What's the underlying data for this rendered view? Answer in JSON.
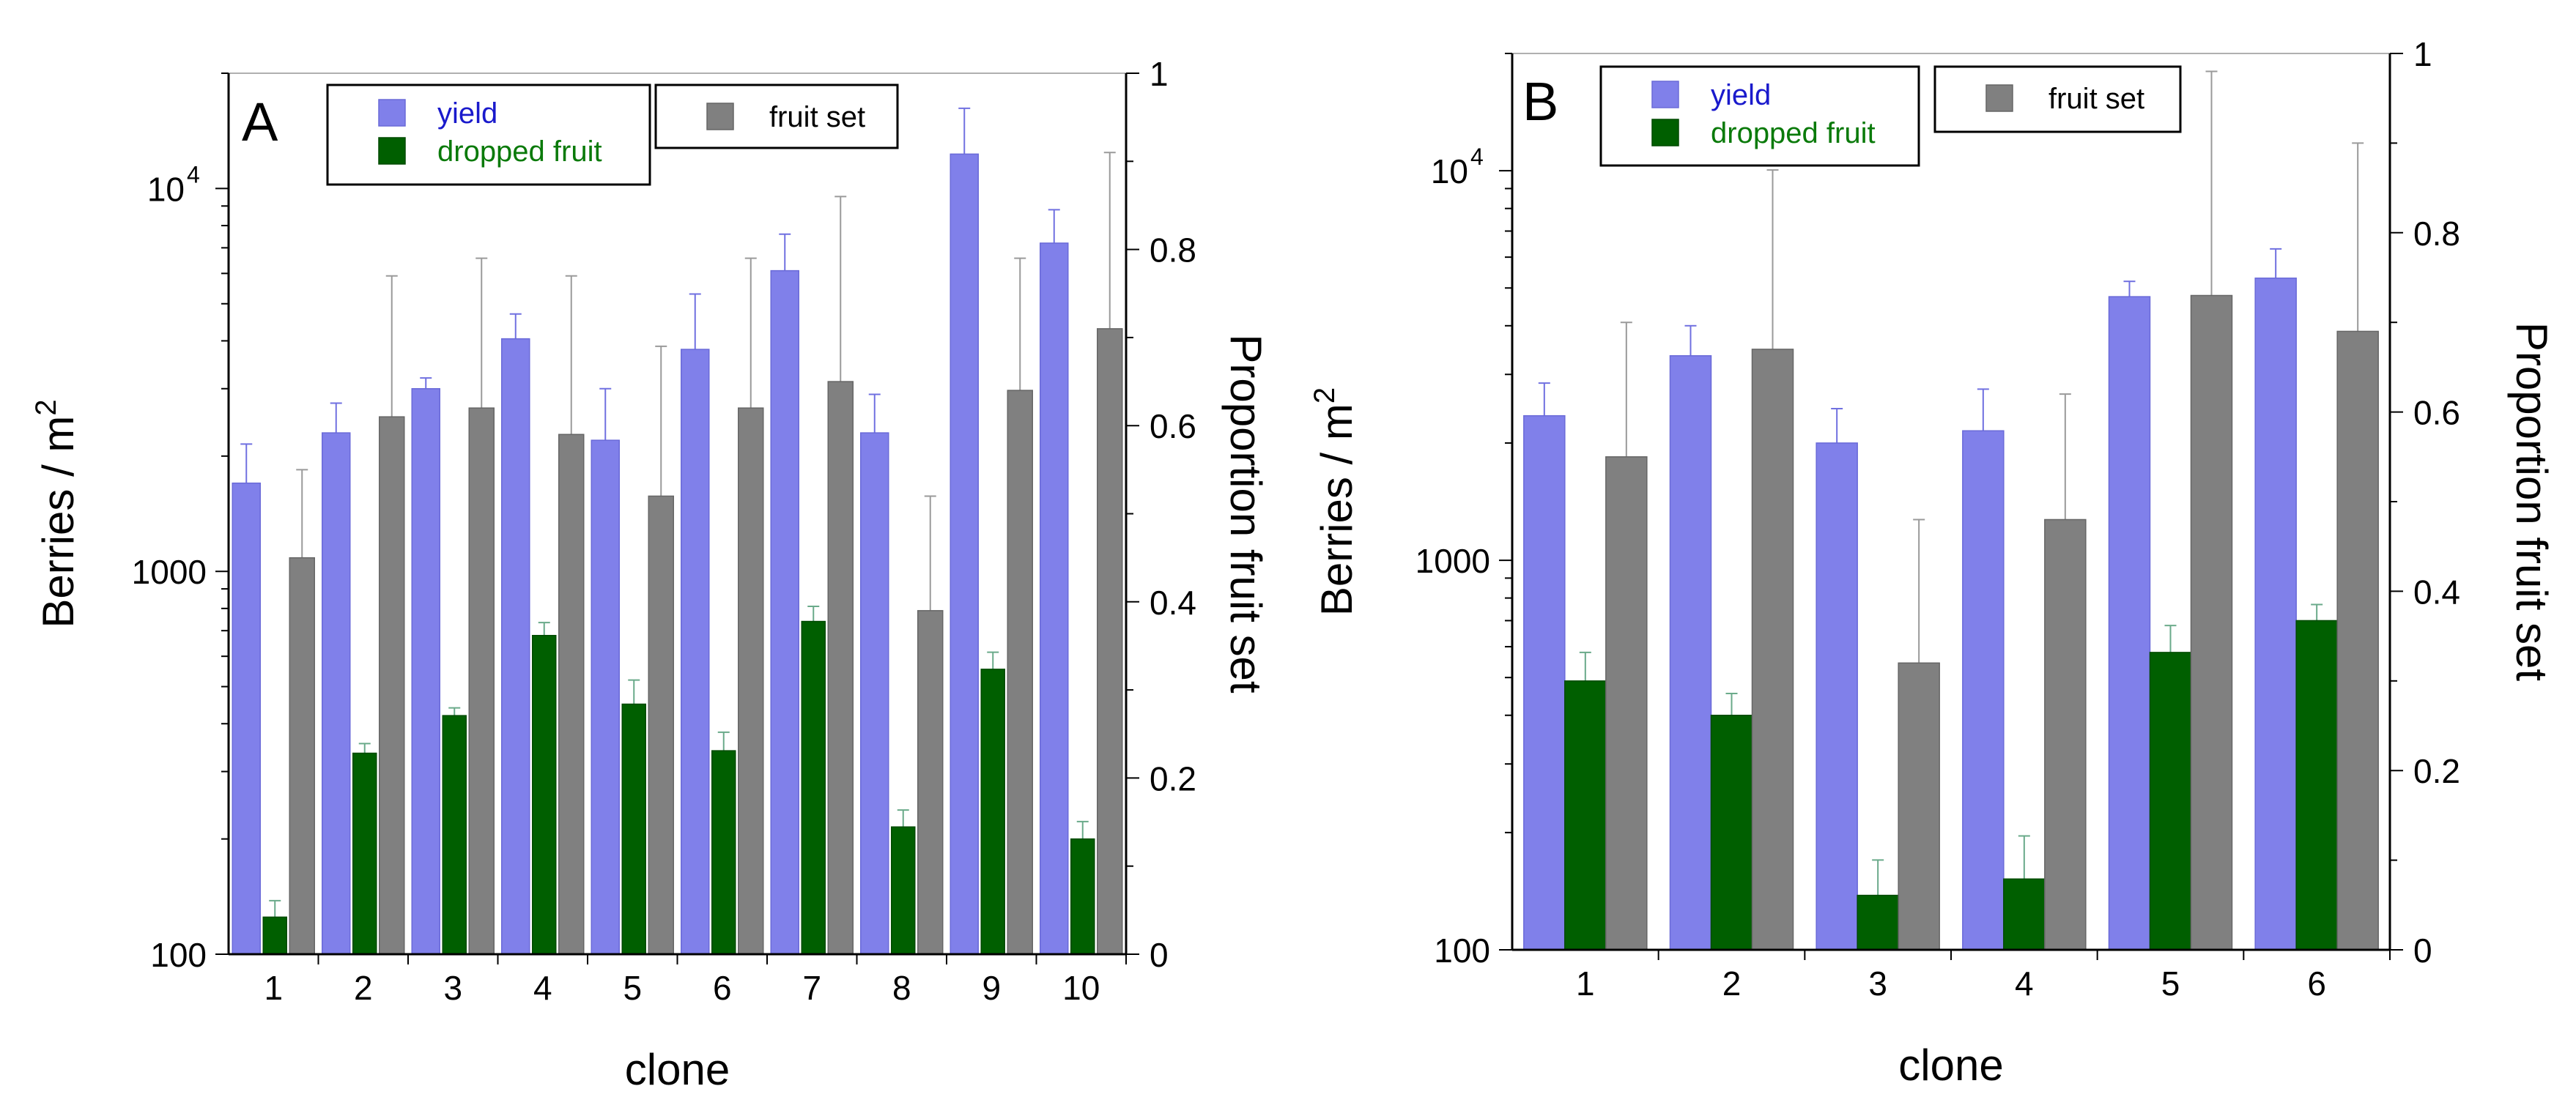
{
  "chart_data": [
    {
      "panel_label": "A",
      "type": "bar",
      "xlabel": "clone",
      "ylabel_left": "Berries / m",
      "ylabel_left_superscript": "2",
      "ylabel_right": "Proportion fruit set",
      "left_axis": {
        "scale": "log",
        "range": [
          100,
          20000
        ],
        "ticks": [
          "100",
          "1000",
          "10"
        ],
        "tick_exponent": "4"
      },
      "right_axis": {
        "scale": "linear",
        "range": [
          0,
          1
        ],
        "ticks": [
          "0",
          "0.2",
          "0.4",
          "0.6",
          "0.8",
          "1"
        ]
      },
      "categories": [
        "1",
        "2",
        "3",
        "4",
        "5",
        "6",
        "7",
        "8",
        "9",
        "10"
      ],
      "series": [
        {
          "name": "yield",
          "axis": "left",
          "color": "#8080ea",
          "values": [
            1700,
            2300,
            3000,
            4050,
            2200,
            3800,
            6100,
            2300,
            12300,
            7200
          ],
          "err_upper": [
            2150,
            2750,
            3200,
            4700,
            3000,
            5300,
            7600,
            2900,
            16200,
            8800
          ]
        },
        {
          "name": "dropped fruit",
          "axis": "left",
          "color": "#005f00",
          "values": [
            125,
            335,
            420,
            680,
            450,
            340,
            740,
            215,
            555,
            200
          ],
          "err_upper": [
            138,
            355,
            440,
            735,
            520,
            380,
            810,
            238,
            615,
            222
          ]
        },
        {
          "name": "fruit set",
          "axis": "right",
          "color": "#808080",
          "values": [
            0.45,
            0.61,
            0.62,
            0.59,
            0.52,
            0.62,
            0.65,
            0.39,
            0.64,
            0.71
          ],
          "err_upper": [
            0.55,
            0.77,
            0.79,
            0.77,
            0.69,
            0.79,
            0.86,
            0.52,
            0.79,
            0.91
          ]
        }
      ],
      "legend": {
        "entries": [
          "yield",
          "dropped fruit"
        ],
        "separate_entry": "fruit set",
        "placement": "top"
      }
    },
    {
      "panel_label": "B",
      "type": "bar",
      "xlabel": "clone",
      "ylabel_left": "Berries / m",
      "ylabel_left_superscript": "2",
      "ylabel_right": "Proportion fruit set",
      "left_axis": {
        "scale": "log",
        "range": [
          100,
          20000
        ],
        "ticks": [
          "100",
          "1000",
          "10"
        ],
        "tick_exponent": "4"
      },
      "right_axis": {
        "scale": "linear",
        "range": [
          0,
          1
        ],
        "ticks": [
          "0",
          "0.2",
          "0.4",
          "0.6",
          "0.8",
          "1"
        ]
      },
      "categories": [
        "1",
        "2",
        "3",
        "4",
        "5",
        "6"
      ],
      "series": [
        {
          "name": "yield",
          "axis": "left",
          "color": "#8080ea",
          "values": [
            2350,
            3350,
            2000,
            2150,
            4750,
            5300
          ],
          "err_upper": [
            2850,
            4000,
            2450,
            2750,
            5200,
            6300
          ]
        },
        {
          "name": "dropped fruit",
          "axis": "left",
          "color": "#005f00",
          "values": [
            490,
            400,
            138,
            152,
            580,
            700
          ],
          "err_upper": [
            580,
            455,
            170,
            196,
            680,
            770
          ]
        },
        {
          "name": "fruit set",
          "axis": "right",
          "color": "#808080",
          "values": [
            0.55,
            0.67,
            0.32,
            0.48,
            0.73,
            0.69
          ],
          "err_upper": [
            0.7,
            0.87,
            0.48,
            0.62,
            0.98,
            0.9
          ]
        }
      ],
      "legend": {
        "entries": [
          "yield",
          "dropped fruit"
        ],
        "separate_entry": "fruit set",
        "placement": "top"
      }
    }
  ]
}
